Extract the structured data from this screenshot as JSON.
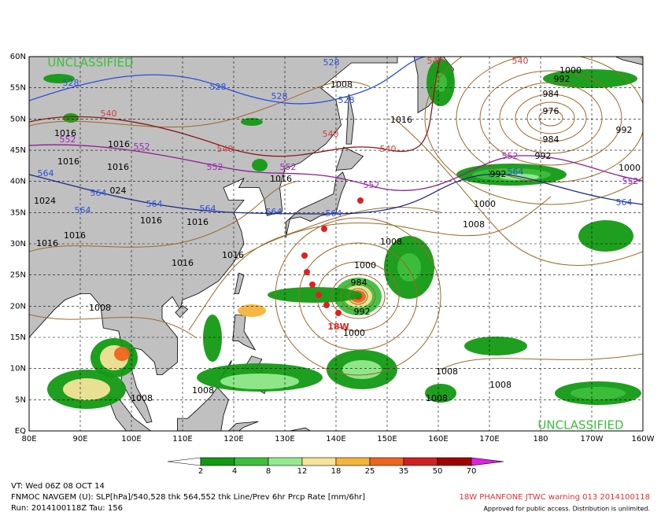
{
  "map": {
    "watermarks": [
      "UNCLASSIFIED",
      "UNCLASSIFIED"
    ],
    "lat_labels": [
      "60N",
      "55N",
      "50N",
      "45N",
      "40N",
      "35N",
      "30N",
      "25N",
      "20N",
      "15N",
      "10N",
      "5N",
      "EQ"
    ],
    "lon_labels": [
      "80E",
      "90E",
      "100E",
      "110E",
      "120E",
      "130E",
      "140E",
      "150E",
      "160E",
      "170E",
      "180",
      "170W",
      "160W"
    ],
    "storm_label": "18W",
    "contour_labels": [
      {
        "text": "528",
        "color": "#2b4fd6"
      },
      {
        "text": "528",
        "color": "#2b4fd6"
      },
      {
        "text": "528",
        "color": "#2b4fd6"
      },
      {
        "text": "528",
        "color": "#2b4fd6"
      },
      {
        "text": "528",
        "color": "#2b4fd6"
      },
      {
        "text": "540",
        "color": "#d04040"
      },
      {
        "text": "540",
        "color": "#d04040"
      },
      {
        "text": "540",
        "color": "#d04040"
      },
      {
        "text": "540",
        "color": "#d04040"
      },
      {
        "text": "540",
        "color": "#d04040"
      },
      {
        "text": "540",
        "color": "#d04040"
      },
      {
        "text": "552",
        "color": "#a020c0"
      },
      {
        "text": "552",
        "color": "#a020c0"
      },
      {
        "text": "552",
        "color": "#a020c0"
      },
      {
        "text": "552",
        "color": "#a020c0"
      },
      {
        "text": "552",
        "color": "#a020c0"
      },
      {
        "text": "552",
        "color": "#a020c0"
      },
      {
        "text": "552",
        "color": "#a020c0"
      },
      {
        "text": "564",
        "color": "#2b4fd6"
      },
      {
        "text": "564",
        "color": "#2b4fd6"
      },
      {
        "text": "564",
        "color": "#2b4fd6"
      },
      {
        "text": "564",
        "color": "#2b4fd6"
      },
      {
        "text": "564",
        "color": "#2b4fd6"
      },
      {
        "text": "564",
        "color": "#2b4fd6"
      },
      {
        "text": "564",
        "color": "#2b4fd6"
      },
      {
        "text": "564",
        "color": "#2b4fd6"
      },
      {
        "text": "564",
        "color": "#2b4fd6"
      },
      {
        "text": "1016",
        "color": "#000000"
      },
      {
        "text": "1016",
        "color": "#000000"
      },
      {
        "text": "1016",
        "color": "#000000"
      },
      {
        "text": "1016",
        "color": "#000000"
      },
      {
        "text": "1016",
        "color": "#000000"
      },
      {
        "text": "1016",
        "color": "#000000"
      },
      {
        "text": "1016",
        "color": "#000000"
      },
      {
        "text": "1016",
        "color": "#000000"
      },
      {
        "text": "1016",
        "color": "#000000"
      },
      {
        "text": "1008",
        "color": "#000000"
      },
      {
        "text": "1008",
        "color": "#000000"
      },
      {
        "text": "1008",
        "color": "#000000"
      },
      {
        "text": "1008",
        "color": "#000000"
      },
      {
        "text": "1008",
        "color": "#000000"
      },
      {
        "text": "1008",
        "color": "#000000"
      },
      {
        "text": "1008",
        "color": "#000000"
      },
      {
        "text": "1008",
        "color": "#000000"
      },
      {
        "text": "1000",
        "color": "#000000"
      },
      {
        "text": "992",
        "color": "#000000"
      },
      {
        "text": "984",
        "color": "#000000"
      },
      {
        "text": "976",
        "color": "#000000"
      },
      {
        "text": "984",
        "color": "#000000"
      },
      {
        "text": "992",
        "color": "#000000"
      },
      {
        "text": "992",
        "color": "#000000"
      },
      {
        "text": "992",
        "color": "#000000"
      },
      {
        "text": "1000",
        "color": "#000000"
      },
      {
        "text": "1000",
        "color": "#000000"
      },
      {
        "text": "1000",
        "color": "#000000"
      },
      {
        "text": "984",
        "color": "#000000"
      },
      {
        "text": "992",
        "color": "#000000"
      },
      {
        "text": "1000",
        "color": "#000000"
      },
      {
        "text": "024",
        "color": "#000000"
      },
      {
        "text": "1024",
        "color": "#000000"
      },
      {
        "text": "1016",
        "color": "#000000"
      },
      {
        "text": "1016",
        "color": "#000000"
      },
      {
        "text": "1016",
        "color": "#000000"
      },
      {
        "text": "1008",
        "color": "#000000"
      }
    ]
  },
  "colorbar": {
    "ticks": [
      2,
      4,
      8,
      12,
      18,
      25,
      35,
      50,
      70
    ],
    "colors": [
      "#ffffff",
      "#139a13",
      "#3dbf3d",
      "#96ea8e",
      "#f6e49a",
      "#f5b43a",
      "#ef6420",
      "#d22020",
      "#a30000",
      "#e020e0"
    ]
  },
  "footer": {
    "valid_time": "VT: Wed 06Z 08 OCT 14",
    "model": "FNMOC NAVGEM (U): SLP[hPa]/540,528 thk 564,552 thk Line/Prev 6hr Prcp Rate [mm/6hr]",
    "run": "Run: 2014100118Z Tau: 156",
    "warning": "18W PHANFONE JTWC warning 013 2014100118",
    "approval": "Approved for public access. Distribution is unlimited."
  }
}
